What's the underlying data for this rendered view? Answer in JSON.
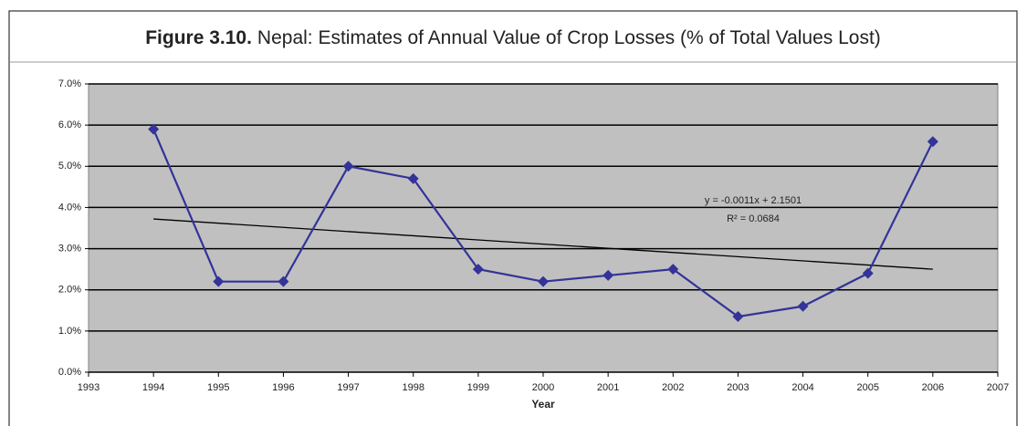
{
  "chart_data": {
    "type": "line",
    "title_label": "Figure 3.10.",
    "title": "Nepal: Estimates of Annual Value of Crop Losses (% of Total Values Lost)",
    "x_label": "Year",
    "x": [
      1994,
      1995,
      1996,
      1997,
      1998,
      1999,
      2000,
      2001,
      2002,
      2003,
      2004,
      2005,
      2006
    ],
    "series": [
      {
        "color": "#333399",
        "values": [
          5.9,
          2.2,
          2.2,
          5.0,
          4.7,
          2.5,
          2.2,
          2.35,
          2.5,
          1.35,
          1.6,
          2.4,
          5.6
        ]
      }
    ],
    "trendline": {
      "color": "#000000",
      "x": [
        1994,
        2006
      ],
      "values": [
        3.72,
        2.5
      ]
    },
    "annotations": [
      "y = -0.0011x + 2.1501",
      "R² = 0.0684"
    ],
    "xlim": [
      1993,
      2007
    ],
    "xticks": [
      1993,
      1994,
      1995,
      1996,
      1997,
      1998,
      1999,
      2000,
      2001,
      2002,
      2003,
      2004,
      2005,
      2006,
      2007
    ],
    "ylim": [
      0,
      7
    ],
    "yticks": [
      {
        "value": 0,
        "label": "0.0%"
      },
      {
        "value": 1,
        "label": "1.0%"
      },
      {
        "value": 2,
        "label": "2.0%"
      },
      {
        "value": 3,
        "label": "3.0%"
      },
      {
        "value": 4,
        "label": "4.0%"
      },
      {
        "value": 5,
        "label": "5.0%"
      },
      {
        "value": 6,
        "label": "6.0%"
      },
      {
        "value": 7,
        "label": "7.0%"
      }
    ],
    "grid": true,
    "plot_background": "#c0c0c0"
  }
}
